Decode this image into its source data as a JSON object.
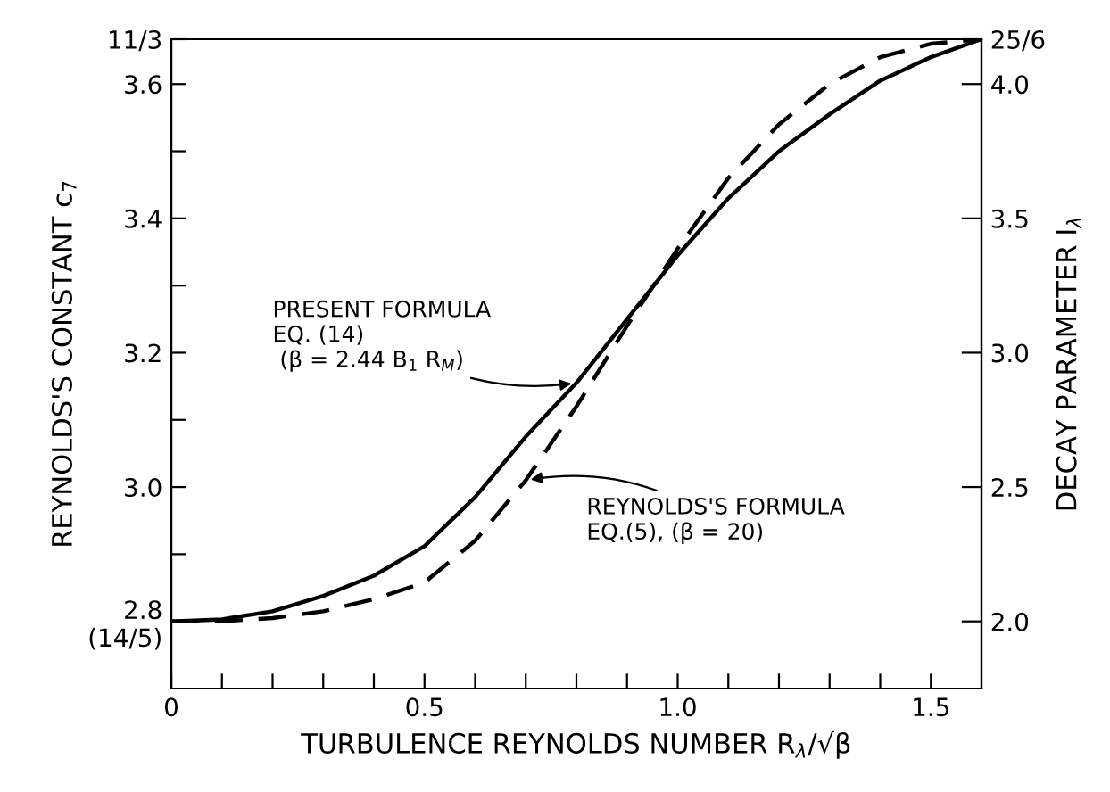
{
  "chart_data": {
    "type": "line",
    "xlabel": "TURBULENCE REYNOLDS NUMBER R$_{λ}$/√β",
    "ylabel": "REYNOLDS'S CONSTANT c$_{7}$",
    "y2label": "DECAY PARAMETER I$_{λ}$",
    "x": [
      0,
      0.1,
      0.2,
      0.3,
      0.4,
      0.5,
      0.6,
      0.7,
      0.8,
      0.9,
      1.0,
      1.1,
      1.2,
      1.3,
      1.4,
      1.5,
      1.6
    ],
    "series": [
      {
        "color": "#000000",
        "line_style": "solid",
        "values": [
          2.8,
          2.803,
          2.815,
          2.838,
          2.868,
          2.912,
          2.985,
          3.075,
          3.155,
          3.25,
          3.345,
          3.43,
          3.5,
          3.555,
          3.605,
          3.64,
          3.6667
        ]
      },
      {
        "color": "#000000",
        "line_style": "dashed",
        "values": [
          2.8,
          2.8,
          2.805,
          2.815,
          2.833,
          2.858,
          2.92,
          3.01,
          3.12,
          3.24,
          3.355,
          3.46,
          3.54,
          3.6,
          3.64,
          3.66,
          3.6667
        ]
      }
    ],
    "annotations": [
      {
        "text": "PRESENT FORMULA\nEQ. (14)\n (β = 2.44 B$_{1}$ R$_{M}$)",
        "x": 0.8,
        "y": 3.155
      },
      {
        "text": "REYNOLDS'S FORMULA\nEQ.(5), (β = 20)",
        "x": 0.7,
        "y": 3.01
      }
    ],
    "xlim": [
      0,
      1.6
    ],
    "xticks": [
      0,
      {
        "value": 0.1,
        "label": null
      },
      {
        "value": 0.2,
        "label": null
      },
      {
        "value": 0.3,
        "label": null
      },
      {
        "value": 0.4,
        "label": null
      },
      {
        "value": 0.5,
        "label": "0.5"
      },
      {
        "value": 0.6,
        "label": null
      },
      {
        "value": 0.7,
        "label": null
      },
      {
        "value": 0.8,
        "label": null
      },
      {
        "value": 0.9,
        "label": null
      },
      {
        "value": 1.0,
        "label": "1.0"
      },
      {
        "value": 1.1,
        "label": null
      },
      {
        "value": 1.2,
        "label": null
      },
      {
        "value": 1.3,
        "label": null
      },
      {
        "value": 1.4,
        "label": null
      },
      {
        "value": 1.5,
        "label": "1.5"
      }
    ],
    "ylim": [
      2.7,
      3.6667
    ],
    "yticks": [
      {
        "value": 2.8,
        "label": "2.8\n(14/5)"
      },
      {
        "value": 2.9,
        "label": null
      },
      {
        "value": 3.0,
        "label": "3.0"
      },
      {
        "value": 3.1,
        "label": null
      },
      3.2,
      {
        "value": 3.3,
        "label": null
      },
      3.4,
      {
        "value": 3.5,
        "label": null
      },
      3.6,
      {
        "value": 3.6667,
        "label": "11/3"
      }
    ],
    "y2lim": [
      1.75,
      4.1667
    ],
    "y2ticks": [
      {
        "value": 2.0,
        "label": "2.0"
      },
      2.5,
      {
        "value": 3.0,
        "label": "3.0"
      },
      3.5,
      {
        "value": 4.0,
        "label": "4.0"
      },
      {
        "value": 4.1667,
        "label": "25/6"
      }
    ],
    "grid": false,
    "legend": false
  }
}
